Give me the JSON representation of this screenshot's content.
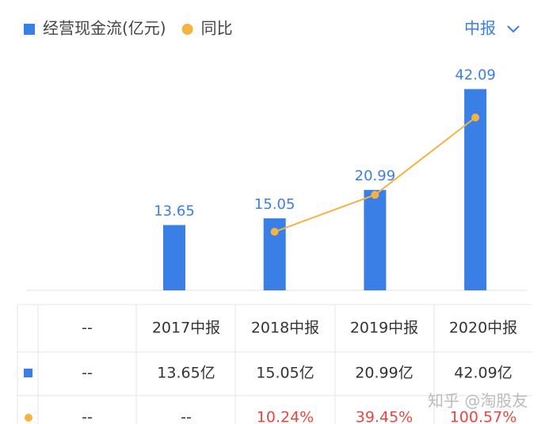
{
  "chart_data": {
    "type": "bar",
    "categories": [
      "2017中报",
      "2018中报",
      "2019中报",
      "2020中报"
    ],
    "series": [
      {
        "name": "经营现金流(亿元)",
        "color": "#3a7fe6",
        "values": [
          13.65,
          15.05,
          20.99,
          42.09
        ]
      },
      {
        "name": "同比",
        "color": "#f5b342",
        "type": "line",
        "axis": "y2",
        "values": [
          null,
          10.24,
          39.45,
          100.57
        ]
      }
    ],
    "ylim": [
      0,
      45
    ],
    "y2lim": [
      -36,
      134
    ],
    "grid": false
  },
  "period_selector": "中报",
  "table": {
    "first_header": "--",
    "rows": [
      [
        "--",
        "13.65亿",
        "15.05亿",
        "20.99亿",
        "42.09亿"
      ],
      [
        "--",
        "--",
        "10.24%",
        "39.45%",
        "100.57%"
      ]
    ]
  },
  "watermark": "知乎 @淘股友"
}
